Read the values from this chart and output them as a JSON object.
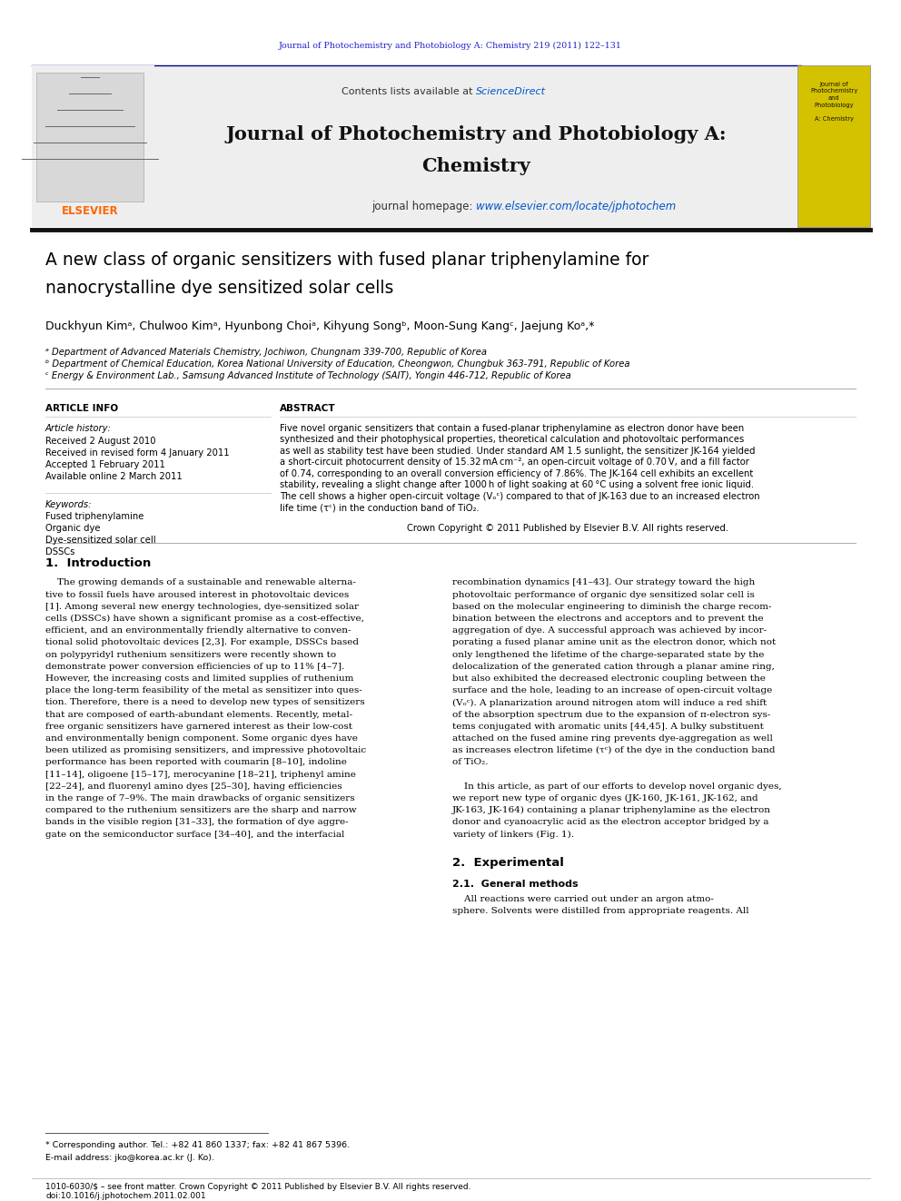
{
  "page_width": 9.92,
  "page_height": 13.23,
  "background_color": "#ffffff",
  "journal_ref_text": "Journal of Photochemistry and Photobiology A: Chemistry 219 (2011) 122–131",
  "journal_ref_color": "#2222cc",
  "header_bg_color": "#eeeeee",
  "elsevier_color": "#ff6600",
  "sciencedirect_color": "#0055cc",
  "homepage_url_color": "#0055cc",
  "journal_title_line1": "Journal of Photochemistry and Photobiology A:",
  "journal_title_line2": "Chemistry",
  "homepage_prefix": "journal homepage: ",
  "homepage_url": "www.elsevier.com/locate/jphotochem",
  "paper_title_line1": "A new class of organic sensitizers with fused planar triphenylamine for",
  "paper_title_line2": "nanocrystalline dye sensitized solar cells",
  "authors": "Duckhyun Kimᵃ, Chulwoo Kimᵃ, Hyunbong Choiᵃ, Kihyung Songᵇ, Moon-Sung Kangᶜ, Jaejung Koᵃ,*",
  "affil_a": "ᵃ Department of Advanced Materials Chemistry, Jochiwon, Chungnam 339-700, Republic of Korea",
  "affil_b": "ᵇ Department of Chemical Education, Korea National University of Education, Cheongwon, Chungbuk 363-791, Republic of Korea",
  "affil_c": "ᶜ Energy & Environment Lab., Samsung Advanced Institute of Technology (SAIT), Yongin 446-712, Republic of Korea",
  "article_info_title": "ARTICLE INFO",
  "article_history_title": "Article history:",
  "received1": "Received 2 August 2010",
  "received2": "Received in revised form 4 January 2011",
  "accepted": "Accepted 1 February 2011",
  "online": "Available online 2 March 2011",
  "keywords_title": "Keywords:",
  "kw": [
    "Fused triphenylamine",
    "Organic dye",
    "Dye-sensitized solar cell",
    "DSSCs"
  ],
  "abstract_title": "ABSTRACT",
  "abstract_lines": [
    "Five novel organic sensitizers that contain a fused-planar triphenylamine as electron donor have been",
    "synthesized and their photophysical properties, theoretical calculation and photovoltaic performances",
    "as well as stability test have been studied. Under standard AM 1.5 sunlight, the sensitizer JK-164 yielded",
    "a short-circuit photocurrent density of 15.32 mA cm⁻², an open-circuit voltage of 0.70 V, and a fill factor",
    "of 0.74, corresponding to an overall conversion efficiency of 7.86%. The JK-164 cell exhibits an excellent",
    "stability, revealing a slight change after 1000 h of light soaking at 60 °C using a solvent free ionic liquid.",
    "The cell shows a higher open-circuit voltage (Vₒᶜ) compared to that of JK-163 due to an increased electron",
    "life time (τᶜ) in the conduction band of TiO₂."
  ],
  "copyright_text": "Crown Copyright © 2011 Published by Elsevier B.V. All rights reserved.",
  "intro_title": "1.  Introduction",
  "intro_col1": [
    "    The growing demands of a sustainable and renewable alterna-",
    "tive to fossil fuels have aroused interest in photovoltaic devices",
    "[1]. Among several new energy technologies, dye-sensitized solar",
    "cells (DSSCs) have shown a significant promise as a cost-effective,",
    "efficient, and an environmentally friendly alternative to conven-",
    "tional solid photovoltaic devices [2,3]. For example, DSSCs based",
    "on polypyridyl ruthenium sensitizers were recently shown to",
    "demonstrate power conversion efficiencies of up to 11% [4–7].",
    "However, the increasing costs and limited supplies of ruthenium",
    "place the long-term feasibility of the metal as sensitizer into ques-",
    "tion. Therefore, there is a need to develop new types of sensitizers",
    "that are composed of earth-abundant elements. Recently, metal-",
    "free organic sensitizers have garnered interest as their low-cost",
    "and environmentally benign component. Some organic dyes have",
    "been utilized as promising sensitizers, and impressive photovoltaic",
    "performance has been reported with coumarin [8–10], indoline",
    "[11–14], oligoene [15–17], merocyanine [18–21], triphenyl amine",
    "[22–24], and fluorenyl amino dyes [25–30], having efficiencies",
    "in the range of 7–9%. The main drawbacks of organic sensitizers",
    "compared to the ruthenium sensitizers are the sharp and narrow",
    "bands in the visible region [31–33], the formation of dye aggre-",
    "gate on the semiconductor surface [34–40], and the interfacial"
  ],
  "intro_col2": [
    "recombination dynamics [41–43]. Our strategy toward the high",
    "photovoltaic performance of organic dye sensitized solar cell is",
    "based on the molecular engineering to diminish the charge recom-",
    "bination between the electrons and acceptors and to prevent the",
    "aggregation of dye. A successful approach was achieved by incor-",
    "porating a fused planar amine unit as the electron donor, which not",
    "only lengthened the lifetime of the charge-separated state by the",
    "delocalization of the generated cation through a planar amine ring,",
    "but also exhibited the decreased electronic coupling between the",
    "surface and the hole, leading to an increase of open-circuit voltage",
    "(Vₒᶜ). A planarization around nitrogen atom will induce a red shift",
    "of the absorption spectrum due to the expansion of π-electron sys-",
    "tems conjugated with aromatic units [44,45]. A bulky substituent",
    "attached on the fused amine ring prevents dye-aggregation as well",
    "as increases electron lifetime (τᶜ) of the dye in the conduction band",
    "of TiO₂.",
    "",
    "    In this article, as part of our efforts to develop novel organic dyes,",
    "we report new type of organic dyes (JK-160, JK-161, JK-162, and",
    "JK-163, JK-164) containing a planar triphenylamine as the electron",
    "donor and cyanoacrylic acid as the electron acceptor bridged by a",
    "variety of linkers (Fig. 1)."
  ],
  "sec2_title": "2.  Experimental",
  "sec21_title": "2.1.  General methods",
  "sec21_lines": [
    "    All reactions were carried out under an argon atmo-",
    "sphere. Solvents were distilled from appropriate reagents. All"
  ],
  "footnote1": "* Corresponding author. Tel.: +82 41 860 1337; fax: +82 41 867 5396.",
  "footnote2": "E-mail address: jko@korea.ac.kr (J. Ko).",
  "footer1": "1010-6030/$ – see front matter. Crown Copyright © 2011 Published by Elsevier B.V. All rights reserved.",
  "footer2": "doi:10.1016/j.jphotochem.2011.02.001"
}
